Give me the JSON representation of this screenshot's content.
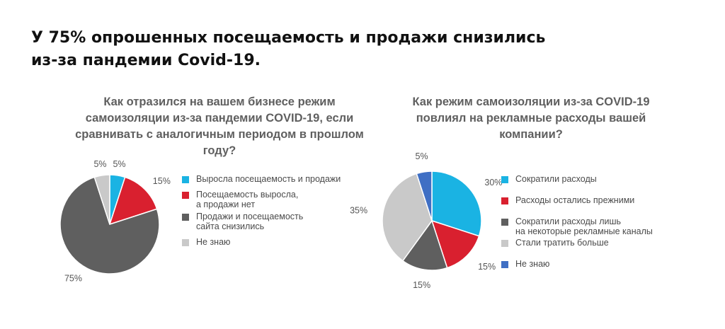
{
  "headline": {
    "line1": "У 75% опрошенных посещаемость и продажи снизились",
    "line2": "из-за пандемии Covid-19."
  },
  "chart_data": [
    {
      "type": "pie",
      "title_lines": [
        "Как отразился на вашем бизнесе режим",
        "самоизоляции из-за пандемии COVID-19, если",
        "сравнивать с аналогичным периодом в прошлом году?"
      ],
      "slices": [
        {
          "label": "Выросла посещаемость и продажи",
          "value": 5,
          "value_label": "5%",
          "color": "#1ab3e3"
        },
        {
          "label": "Посещаемость выросла,\nа продажи нет",
          "value": 15,
          "value_label": "15%",
          "color": "#d9202f"
        },
        {
          "label": "Продажи и посещаемость\nсайта снизились",
          "value": 75,
          "value_label": "75%",
          "color": "#5f5f5f"
        },
        {
          "label": "Не знаю",
          "value": 5,
          "value_label": "5%",
          "color": "#c9c9c9"
        }
      ],
      "legend_position": "right"
    },
    {
      "type": "pie",
      "title_lines": [
        "Как режим самоизоляции из-за COVID-19",
        "повлиял на рекламные расходы вашей",
        "компании?"
      ],
      "slices": [
        {
          "label": "Сократили расходы",
          "value": 30,
          "value_label": "30%",
          "color": "#1ab3e3"
        },
        {
          "label": "Расходы остались прежними",
          "value": 15,
          "value_label": "15%",
          "color": "#d9202f"
        },
        {
          "label": "Сократили расходы лишь\nна некоторые рекламные каналы",
          "value": 15,
          "value_label": "15%",
          "color": "#5f5f5f"
        },
        {
          "label": "Стали тратить больше",
          "value": 35,
          "value_label": "35%",
          "color": "#c9c9c9"
        },
        {
          "label": "Не знаю",
          "value": 5,
          "value_label": "5%",
          "color": "#3f6fc4"
        }
      ],
      "legend_position": "right"
    }
  ]
}
